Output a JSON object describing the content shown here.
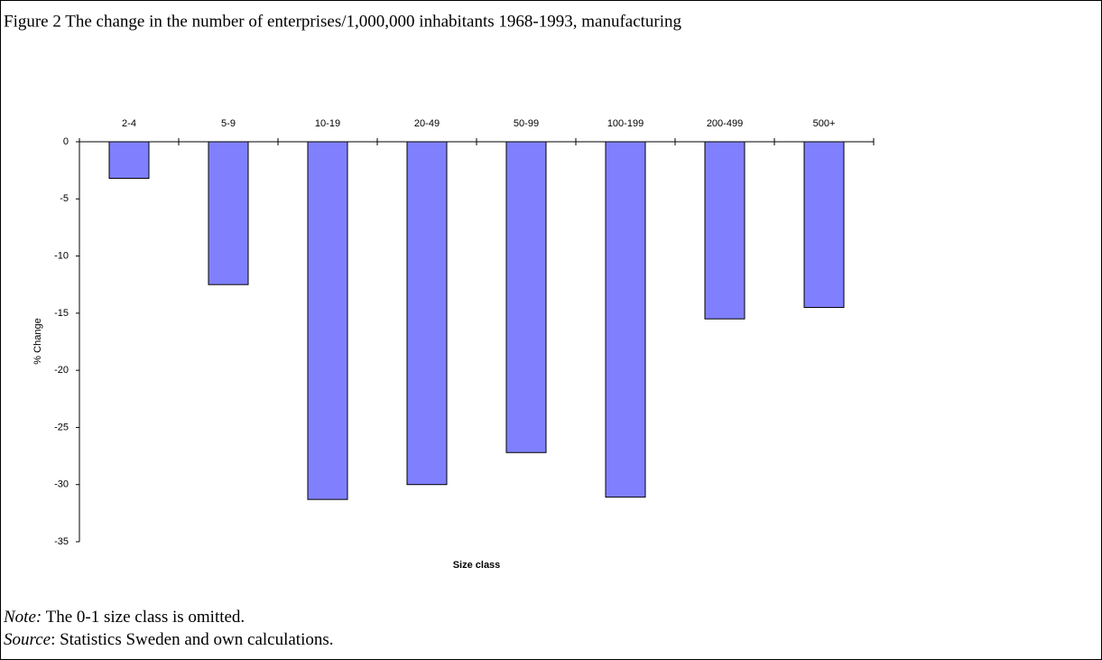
{
  "chart_data": {
    "type": "bar",
    "title": "Figure 2 The change in the number of enterprises/1,000,000 inhabitants 1968-1993, manufacturing",
    "categories": [
      "2-4",
      "5-9",
      "10-19",
      "20-49",
      "50-99",
      "100-199",
      "200-499",
      "500+"
    ],
    "values": [
      -3.2,
      -12.5,
      -31.3,
      -30.0,
      -27.2,
      -31.1,
      -15.5,
      -14.5
    ],
    "color": "#8080ff",
    "ylim": [
      -35,
      0
    ],
    "yticks": [
      0,
      -5,
      -10,
      -15,
      -20,
      -25,
      -30,
      -35
    ],
    "y_label": "% Change",
    "x_label": "Size class",
    "grid": false
  },
  "notes": {
    "note_label": "Note:",
    "note_text": " The 0-1 size class is omitted.",
    "source_label": "Source",
    "source_text": ": Statistics Sweden and own calculations."
  }
}
